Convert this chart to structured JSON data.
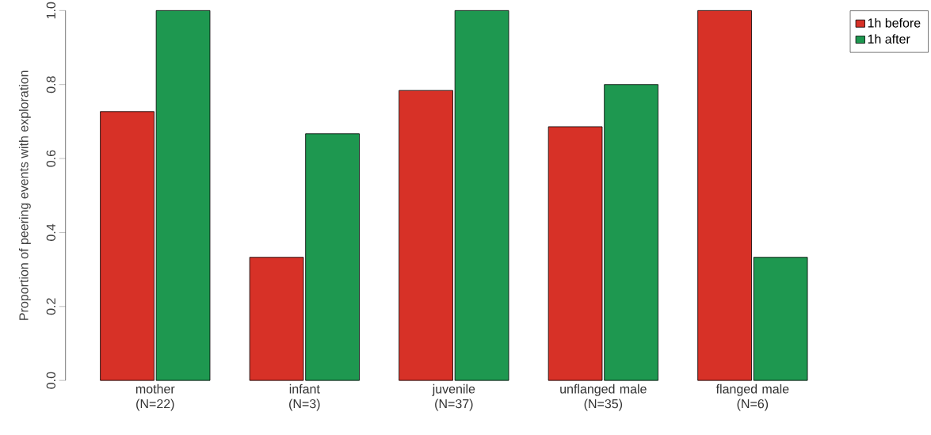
{
  "chart_data": {
    "type": "bar",
    "ylabel": "Proportion of peering events with exploration",
    "categories": [
      "mother\n(N=22)",
      "infant\n(N=3)",
      "juvenile\n(N=37)",
      "unflanged male\n(N=35)",
      "flanged male\n(N=6)"
    ],
    "series": [
      {
        "name": "1h before",
        "color": "#d73127",
        "values": [
          0.727,
          0.333,
          0.784,
          0.686,
          1.0
        ]
      },
      {
        "name": "1h after",
        "color": "#1e9850",
        "values": [
          1.0,
          0.667,
          1.0,
          0.8,
          0.333
        ]
      }
    ],
    "ylim": [
      0,
      1
    ],
    "yticks": [
      {
        "value": 0,
        "label": "0.0"
      },
      0.2,
      0.4,
      0.6,
      0.8,
      {
        "value": 1,
        "label": "1.0"
      }
    ],
    "legend": "top right"
  }
}
